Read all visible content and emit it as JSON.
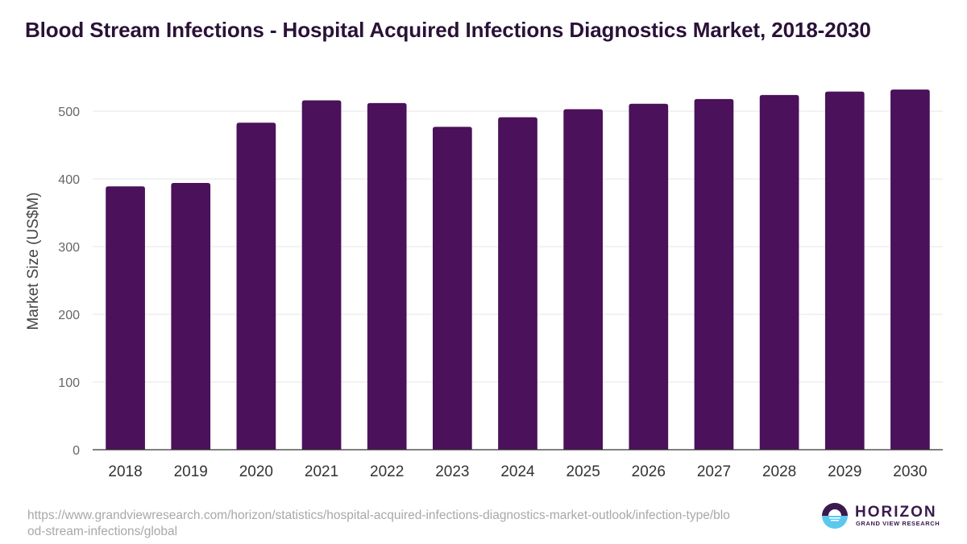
{
  "title": "Blood Stream Infections - Hospital Acquired Infections Diagnostics Market, 2018-2030",
  "source_url": "https://www.grandviewresearch.com/horizon/statistics/hospital-acquired-infections-diagnostics-market-outlook/infection-type/blood-stream-infections/global",
  "logo": {
    "name": "HORIZON",
    "subtitle": "GRAND VIEW RESEARCH"
  },
  "colors": {
    "bar": "#4b115a",
    "title": "#2a1237",
    "grid": "#e6e6e6",
    "axis": "#333333"
  },
  "chart_data": {
    "type": "bar",
    "title": "Blood Stream Infections - Hospital Acquired Infections Diagnostics Market, 2018-2030",
    "xlabel": "",
    "ylabel": "Market Size (US$M)",
    "categories": [
      "2018",
      "2019",
      "2020",
      "2021",
      "2022",
      "2023",
      "2024",
      "2025",
      "2026",
      "2027",
      "2028",
      "2029",
      "2030"
    ],
    "values": [
      389,
      394,
      483,
      516,
      512,
      477,
      491,
      503,
      511,
      518,
      524,
      529,
      532
    ],
    "ylim": [
      0,
      550
    ],
    "yticks": [
      0,
      100,
      200,
      300,
      400,
      500
    ],
    "grid": true,
    "legend": "none"
  }
}
